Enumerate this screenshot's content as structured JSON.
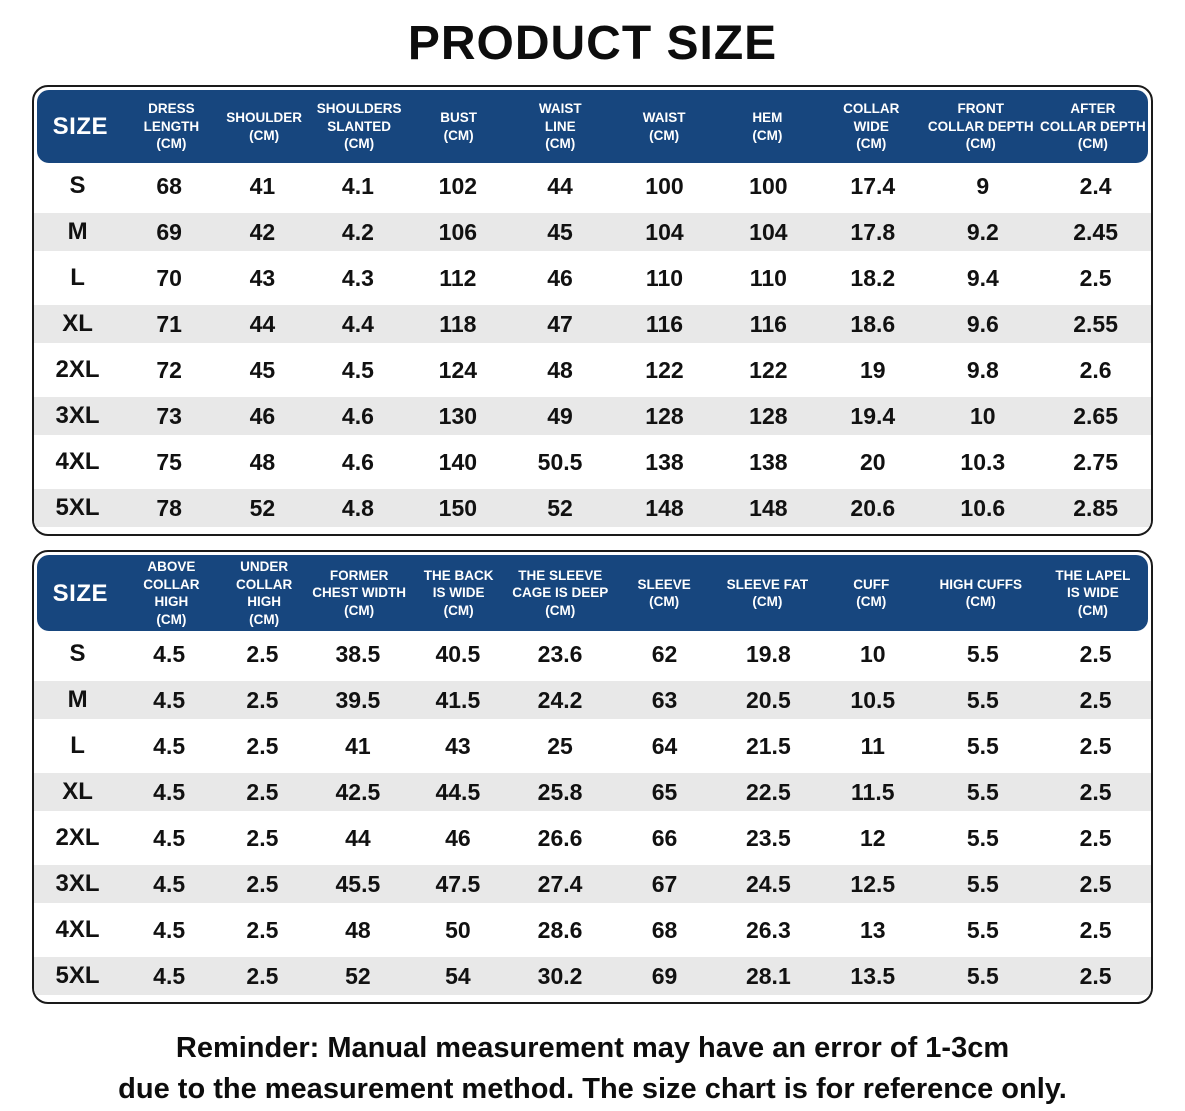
{
  "title": "PRODUCT SIZE",
  "colors": {
    "header_bg": "#17467E",
    "row_alt": "#E8E8E8",
    "border": "#1A1A1A"
  },
  "reminder": {
    "line1": "Reminder: Manual measurement may have an error of 1-3cm",
    "line2": "due to the measurement method. The size chart is for reference only."
  },
  "tables": [
    {
      "name": "upper-body",
      "columns": [
        {
          "lines": [
            "SIZE"
          ]
        },
        {
          "lines": [
            "DRESS",
            "LENGTH",
            "(CM)"
          ]
        },
        {
          "lines": [
            "SHOULDER",
            "(CM)"
          ]
        },
        {
          "lines": [
            "SHOULDERS",
            "SLANTED",
            "(CM)"
          ]
        },
        {
          "lines": [
            "BUST",
            "(CM)"
          ]
        },
        {
          "lines": [
            "WAIST",
            "LINE",
            "(CM)"
          ]
        },
        {
          "lines": [
            "WAIST",
            "(CM)"
          ]
        },
        {
          "lines": [
            "HEM",
            "(CM)"
          ]
        },
        {
          "lines": [
            "COLLAR",
            "WIDE",
            "(CM)"
          ]
        },
        {
          "lines": [
            "FRONT",
            "COLLAR DEPTH",
            "(CM)"
          ]
        },
        {
          "lines": [
            "AFTER",
            "COLLAR DEPTH",
            "(CM)"
          ]
        }
      ],
      "rows": [
        [
          "S",
          "68",
          "41",
          "4.1",
          "102",
          "44",
          "100",
          "100",
          "17.4",
          "9",
          "2.4"
        ],
        [
          "M",
          "69",
          "42",
          "4.2",
          "106",
          "45",
          "104",
          "104",
          "17.8",
          "9.2",
          "2.45"
        ],
        [
          "L",
          "70",
          "43",
          "4.3",
          "112",
          "46",
          "110",
          "110",
          "18.2",
          "9.4",
          "2.5"
        ],
        [
          "XL",
          "71",
          "44",
          "4.4",
          "118",
          "47",
          "116",
          "116",
          "18.6",
          "9.6",
          "2.55"
        ],
        [
          "2XL",
          "72",
          "45",
          "4.5",
          "124",
          "48",
          "122",
          "122",
          "19",
          "9.8",
          "2.6"
        ],
        [
          "3XL",
          "73",
          "46",
          "4.6",
          "130",
          "49",
          "128",
          "128",
          "19.4",
          "10",
          "2.65"
        ],
        [
          "4XL",
          "75",
          "48",
          "4.6",
          "140",
          "50.5",
          "138",
          "138",
          "20",
          "10.3",
          "2.75"
        ],
        [
          "5XL",
          "78",
          "52",
          "4.8",
          "150",
          "52",
          "148",
          "148",
          "20.6",
          "10.6",
          "2.85"
        ]
      ]
    },
    {
      "name": "collar-sleeve",
      "columns": [
        {
          "lines": [
            "SIZE"
          ]
        },
        {
          "lines": [
            "ABOVE",
            "COLLAR HIGH",
            "(CM)"
          ]
        },
        {
          "lines": [
            "UNDER",
            "COLLAR HIGH",
            "(CM)"
          ]
        },
        {
          "lines": [
            "FORMER",
            "CHEST WIDTH",
            "(CM)"
          ]
        },
        {
          "lines": [
            "THE BACK",
            "IS WIDE",
            "(CM)"
          ]
        },
        {
          "lines": [
            "THE SLEEVE",
            "CAGE IS DEEP",
            "(CM)"
          ]
        },
        {
          "lines": [
            "SLEEVE",
            "(CM)"
          ]
        },
        {
          "lines": [
            "SLEEVE FAT",
            "(CM)"
          ]
        },
        {
          "lines": [
            "CUFF",
            "(CM)"
          ]
        },
        {
          "lines": [
            "HIGH CUFFS",
            "(CM)"
          ]
        },
        {
          "lines": [
            "THE LAPEL",
            "IS WIDE",
            "(CM)"
          ]
        }
      ],
      "rows": [
        [
          "S",
          "4.5",
          "2.5",
          "38.5",
          "40.5",
          "23.6",
          "62",
          "19.8",
          "10",
          "5.5",
          "2.5"
        ],
        [
          "M",
          "4.5",
          "2.5",
          "39.5",
          "41.5",
          "24.2",
          "63",
          "20.5",
          "10.5",
          "5.5",
          "2.5"
        ],
        [
          "L",
          "4.5",
          "2.5",
          "41",
          "43",
          "25",
          "64",
          "21.5",
          "11",
          "5.5",
          "2.5"
        ],
        [
          "XL",
          "4.5",
          "2.5",
          "42.5",
          "44.5",
          "25.8",
          "65",
          "22.5",
          "11.5",
          "5.5",
          "2.5"
        ],
        [
          "2XL",
          "4.5",
          "2.5",
          "44",
          "46",
          "26.6",
          "66",
          "23.5",
          "12",
          "5.5",
          "2.5"
        ],
        [
          "3XL",
          "4.5",
          "2.5",
          "45.5",
          "47.5",
          "27.4",
          "67",
          "24.5",
          "12.5",
          "5.5",
          "2.5"
        ],
        [
          "4XL",
          "4.5",
          "2.5",
          "48",
          "50",
          "28.6",
          "68",
          "26.3",
          "13",
          "5.5",
          "2.5"
        ],
        [
          "5XL",
          "4.5",
          "2.5",
          "52",
          "54",
          "30.2",
          "69",
          "28.1",
          "13.5",
          "5.5",
          "2.5"
        ]
      ]
    }
  ]
}
